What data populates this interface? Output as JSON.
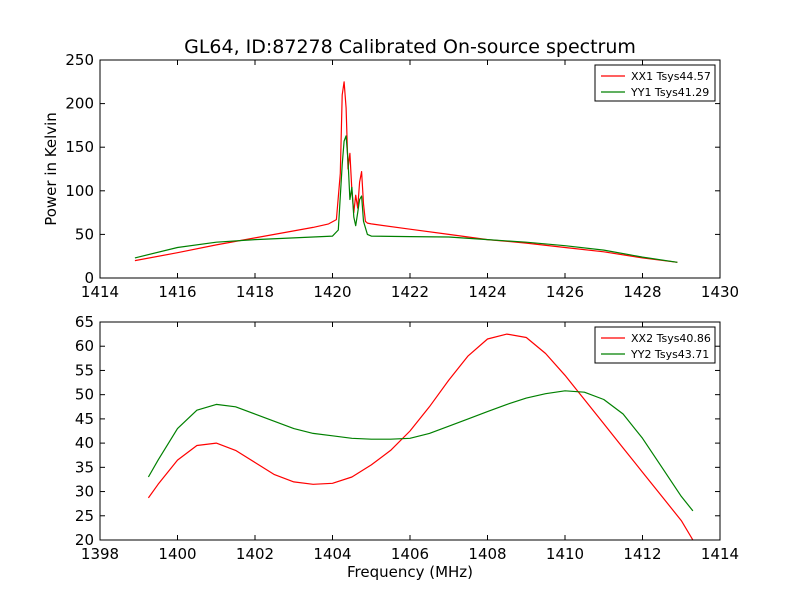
{
  "figure_title": "GL64, ID:87278 Calibrated On-source spectrum",
  "chart_data": [
    {
      "type": "line",
      "xlim": [
        1414,
        1430
      ],
      "ylim": [
        0,
        250
      ],
      "xticks": [
        1414,
        1416,
        1418,
        1420,
        1422,
        1424,
        1426,
        1428,
        1430
      ],
      "yticks": [
        0,
        50,
        100,
        150,
        200,
        250
      ],
      "xlabel": "",
      "ylabel": "Power in Kelvin",
      "legend_position": "top-right",
      "series": [
        {
          "name": "XX1 Tsys44.57",
          "color": "#ff0000",
          "x": [
            1414.9,
            1416,
            1417,
            1418,
            1419,
            1419.5,
            1419.9,
            1420.1,
            1420.2,
            1420.25,
            1420.3,
            1420.35,
            1420.4,
            1420.45,
            1420.5,
            1420.55,
            1420.6,
            1420.65,
            1420.7,
            1420.75,
            1420.8,
            1420.85,
            1420.9,
            1421,
            1422,
            1423,
            1424,
            1425,
            1426,
            1427,
            1428,
            1428.9
          ],
          "y": [
            20,
            29,
            38,
            46,
            54,
            58,
            62,
            67,
            120,
            210,
            225,
            195,
            125,
            143,
            100,
            75,
            95,
            80,
            110,
            122,
            85,
            65,
            63,
            62,
            56,
            50,
            44,
            40,
            35,
            30,
            23,
            18
          ]
        },
        {
          "name": "YY1 Tsys41.29",
          "color": "#008000",
          "x": [
            1414.9,
            1416,
            1417,
            1418,
            1419,
            1419.5,
            1420,
            1420.15,
            1420.25,
            1420.3,
            1420.35,
            1420.4,
            1420.45,
            1420.5,
            1420.55,
            1420.6,
            1420.65,
            1420.7,
            1420.75,
            1420.8,
            1420.9,
            1421,
            1422,
            1423,
            1424,
            1425,
            1426,
            1427,
            1428,
            1428.9
          ],
          "y": [
            23,
            35,
            41,
            44,
            46,
            47,
            48,
            55,
            130,
            157,
            163,
            135,
            90,
            104,
            70,
            60,
            75,
            90,
            94,
            65,
            50,
            48,
            47.5,
            47,
            44,
            41,
            37,
            32,
            24,
            18
          ]
        }
      ]
    },
    {
      "type": "line",
      "xlim": [
        1398,
        1414
      ],
      "ylim": [
        20,
        65
      ],
      "xticks": [
        1398,
        1400,
        1402,
        1404,
        1406,
        1408,
        1410,
        1412,
        1414
      ],
      "yticks": [
        20,
        25,
        30,
        35,
        40,
        45,
        50,
        55,
        60,
        65
      ],
      "xlabel": "Frequency (MHz)",
      "ylabel": "",
      "legend_position": "top-right",
      "series": [
        {
          "name": "XX2 Tsys40.86",
          "color": "#ff0000",
          "x": [
            1399.25,
            1399.5,
            1400,
            1400.5,
            1401,
            1401.5,
            1402,
            1402.5,
            1403,
            1403.5,
            1404,
            1404.5,
            1405,
            1405.5,
            1406,
            1406.5,
            1407,
            1407.5,
            1408,
            1408.5,
            1409,
            1409.5,
            1410,
            1410.5,
            1411,
            1411.5,
            1412,
            1412.5,
            1413,
            1413.3
          ],
          "y": [
            28.7,
            31.5,
            36.5,
            39.5,
            40,
            38.5,
            36,
            33.5,
            32,
            31.5,
            31.7,
            33,
            35.5,
            38.5,
            42.5,
            47.5,
            53,
            58,
            61.5,
            62.5,
            61.8,
            58.5,
            54,
            49,
            44,
            39,
            34,
            29,
            24,
            20
          ]
        },
        {
          "name": "YY2 Tsys43.71",
          "color": "#008000",
          "x": [
            1399.25,
            1399.5,
            1400,
            1400.5,
            1401,
            1401.5,
            1402,
            1402.5,
            1403,
            1403.5,
            1404,
            1404.5,
            1405,
            1405.5,
            1406,
            1406.5,
            1407,
            1407.5,
            1408,
            1408.5,
            1409,
            1409.5,
            1410,
            1410.5,
            1411,
            1411.5,
            1412,
            1412.5,
            1413,
            1413.3
          ],
          "y": [
            33,
            36.5,
            43,
            46.8,
            48,
            47.5,
            46,
            44.5,
            43,
            42,
            41.5,
            41,
            40.8,
            40.8,
            41,
            42,
            43.5,
            45,
            46.5,
            48,
            49.3,
            50.2,
            50.8,
            50.5,
            49,
            46,
            41,
            35,
            29,
            26
          ]
        }
      ]
    }
  ]
}
